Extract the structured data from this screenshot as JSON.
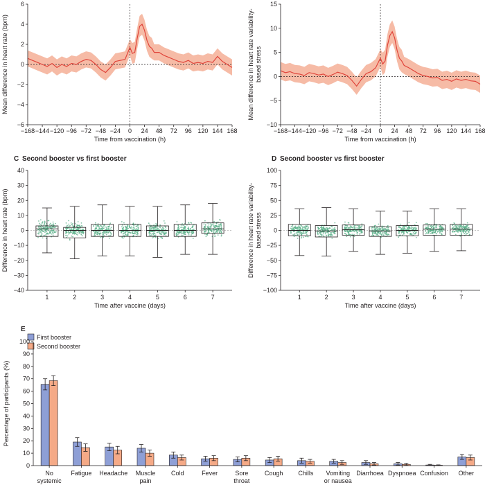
{
  "colors": {
    "line": "#e0443a",
    "band": "#f5b49c",
    "box": "#231f20",
    "dots": "#5bb08a",
    "bar_first": "#8e9fd6",
    "bar_second": "#f5aa87",
    "axis": "#231f20"
  },
  "chart_data": [
    {
      "id": "A",
      "type": "line",
      "title": "",
      "xlabel": "Time from vaccination (h)",
      "ylabel": "Mean difference in heart rate (bpm)",
      "xlim": [
        -168,
        168
      ],
      "ylim": [
        -6,
        6
      ],
      "xticks": [
        -168,
        -144,
        -120,
        -96,
        -72,
        -48,
        -24,
        0,
        24,
        48,
        72,
        96,
        120,
        144,
        168
      ],
      "yticks": [
        -6,
        -4,
        -2,
        0,
        2,
        4,
        6
      ],
      "band_halfwidth": 0.8,
      "series": [
        {
          "x": [
            -168,
            -160,
            -152,
            -144,
            -136,
            -128,
            -120,
            -112,
            -104,
            -96,
            -88,
            -80,
            -72,
            -64,
            -56,
            -48,
            -40,
            -32,
            -24,
            -16,
            -8,
            0,
            4,
            8,
            12,
            16,
            20,
            24,
            28,
            32,
            36,
            40,
            48,
            56,
            64,
            72,
            80,
            88,
            96,
            104,
            112,
            120,
            128,
            136,
            144,
            152,
            160,
            168
          ],
          "y": [
            0.6,
            0.4,
            0.2,
            0.0,
            -0.2,
            0.1,
            -0.3,
            0.0,
            -0.2,
            0.1,
            0.0,
            0.3,
            0.5,
            0.4,
            0.0,
            -0.5,
            -0.8,
            -0.3,
            0.3,
            0.4,
            0.5,
            1.7,
            1.1,
            1.2,
            2.6,
            3.8,
            4.0,
            3.4,
            2.4,
            1.8,
            1.6,
            1.2,
            1.2,
            0.9,
            0.7,
            0.5,
            0.3,
            0.2,
            0.4,
            0.1,
            0.2,
            0.1,
            0.3,
            0.2,
            0.8,
            0.3,
            0.0,
            -0.3
          ]
        }
      ]
    },
    {
      "id": "B",
      "type": "line",
      "title": "",
      "xlabel": "Time from vaccination (h)",
      "ylabel": "Mean difference in heart rate variability-based stress",
      "ylabel_lines": [
        "Mean difference in heart rate variability-",
        "based stress"
      ],
      "xlim": [
        -168,
        168
      ],
      "ylim": [
        -10,
        15
      ],
      "xticks": [
        -168,
        -144,
        -120,
        -96,
        -72,
        -48,
        -24,
        0,
        24,
        48,
        72,
        96,
        120,
        144,
        168
      ],
      "yticks": [
        -10,
        -5,
        0,
        5,
        10,
        15
      ],
      "band_halfwidth": 1.8,
      "series": [
        {
          "x": [
            -168,
            -160,
            -152,
            -144,
            -136,
            -128,
            -120,
            -112,
            -104,
            -96,
            -88,
            -80,
            -72,
            -64,
            -56,
            -48,
            -40,
            -32,
            -24,
            -16,
            -8,
            0,
            4,
            8,
            12,
            16,
            20,
            24,
            28,
            32,
            36,
            40,
            48,
            56,
            64,
            72,
            80,
            88,
            96,
            104,
            112,
            120,
            128,
            136,
            144,
            152,
            160,
            168
          ],
          "y": [
            1.2,
            0.8,
            1.0,
            0.6,
            0.5,
            0.2,
            0.8,
            0.6,
            0.3,
            0.5,
            0.0,
            0.4,
            0.9,
            0.6,
            0.2,
            -0.8,
            -2.0,
            -0.6,
            0.6,
            1.0,
            1.8,
            3.8,
            2.6,
            3.2,
            6.5,
            8.5,
            9.3,
            8.0,
            5.5,
            3.8,
            3.2,
            2.3,
            1.8,
            1.2,
            0.6,
            0.2,
            0.0,
            -0.3,
            -0.2,
            -0.8,
            -0.6,
            -1.0,
            -0.5,
            -0.8,
            -0.6,
            -0.9,
            -1.0,
            -1.6
          ]
        }
      ]
    },
    {
      "id": "C",
      "type": "box",
      "panel_letter": "C",
      "title": "Second booster vs first booster",
      "xlabel": "Time after vaccine (days)",
      "ylabel": "Difference in heart rate (bpm)",
      "ylim": [
        -40,
        40
      ],
      "yticks": [
        -40,
        -30,
        -20,
        -10,
        0,
        10,
        20,
        30,
        40
      ],
      "categories": [
        "1",
        "2",
        "3",
        "4",
        "5",
        "6",
        "7"
      ],
      "boxes": [
        {
          "whislo": -15,
          "q1": -4,
          "med": 1,
          "q3": 3,
          "whishi": 15
        },
        {
          "whislo": -19,
          "q1": -5,
          "med": 0,
          "q3": 2,
          "whishi": 16
        },
        {
          "whislo": -17,
          "q1": -4,
          "med": 0,
          "q3": 4,
          "whishi": 17
        },
        {
          "whislo": -17,
          "q1": -4,
          "med": 0,
          "q3": 4,
          "whishi": 16
        },
        {
          "whislo": -18,
          "q1": -4,
          "med": 0,
          "q3": 3,
          "whishi": 16
        },
        {
          "whislo": -16,
          "q1": -4,
          "med": 0,
          "q3": 4,
          "whishi": 17
        },
        {
          "whislo": -16,
          "q1": -2,
          "med": 1,
          "q3": 5,
          "whishi": 18
        }
      ]
    },
    {
      "id": "D",
      "type": "box",
      "panel_letter": "D",
      "title": "Second booster vs first booster",
      "xlabel": "Time after vaccine (days)",
      "ylabel": "Difference in heart rate variability-based stress",
      "ylabel_lines": [
        "Difference in heart rate variability-",
        "based stress"
      ],
      "ylim": [
        -100,
        100
      ],
      "yticks": [
        -100,
        -75,
        -50,
        -25,
        0,
        25,
        50,
        75,
        100
      ],
      "categories": [
        "1",
        "2",
        "3",
        "4",
        "5",
        "6",
        "7"
      ],
      "boxes": [
        {
          "whislo": -42,
          "q1": -9,
          "med": 0,
          "q3": 10,
          "whishi": 36
        },
        {
          "whislo": -43,
          "q1": -11,
          "med": -1,
          "q3": 8,
          "whishi": 38
        },
        {
          "whislo": -35,
          "q1": -8,
          "med": 1,
          "q3": 9,
          "whishi": 36
        },
        {
          "whislo": -40,
          "q1": -10,
          "med": -1,
          "q3": 6,
          "whishi": 32
        },
        {
          "whislo": -38,
          "q1": -9,
          "med": 0,
          "q3": 8,
          "whishi": 32
        },
        {
          "whislo": -35,
          "q1": -8,
          "med": 2,
          "q3": 9,
          "whishi": 36
        },
        {
          "whislo": -34,
          "q1": -8,
          "med": 2,
          "q3": 10,
          "whishi": 36
        }
      ]
    },
    {
      "id": "E",
      "type": "bar",
      "panel_letter": "E",
      "title": "",
      "xlabel": "",
      "ylabel": "Percentage of participants (%)",
      "ylim": [
        0,
        100
      ],
      "yticks": [
        0,
        10,
        20,
        30,
        40,
        50,
        60,
        70,
        80,
        90,
        100
      ],
      "categories": [
        [
          "No",
          "systemic"
        ],
        [
          "Fatigue"
        ],
        [
          "Headache"
        ],
        [
          "Muscle",
          "pain"
        ],
        [
          "Cold"
        ],
        [
          "Fever"
        ],
        [
          "Sore",
          "throat"
        ],
        [
          "Cough"
        ],
        [
          "Chills"
        ],
        [
          "Vomiting",
          "or nausea"
        ],
        [
          "Diarrhoea"
        ],
        [
          "Dyspnoea"
        ],
        [
          "Confusion"
        ],
        [
          "Other"
        ]
      ],
      "series": [
        {
          "name": "First booster",
          "values": [
            65.5,
            19,
            15,
            14,
            8.5,
            5.5,
            5,
            4.5,
            4,
            3.5,
            2.5,
            1.5,
            0.5,
            7
          ],
          "err": [
            4.5,
            3.5,
            3,
            3,
            2.5,
            2,
            2,
            2,
            2,
            1.5,
            1.5,
            1,
            0.5,
            2
          ]
        },
        {
          "name": "Second booster",
          "values": [
            68.5,
            14.5,
            12.5,
            10,
            6.5,
            6,
            6,
            5.5,
            3.5,
            2.5,
            1.5,
            1,
            0.3,
            6.5
          ],
          "err": [
            4,
            3,
            3,
            2.5,
            2,
            2,
            2,
            2,
            1.5,
            1.5,
            1,
            0.8,
            0.3,
            2
          ]
        }
      ],
      "legend_placement": "top-left"
    }
  ]
}
